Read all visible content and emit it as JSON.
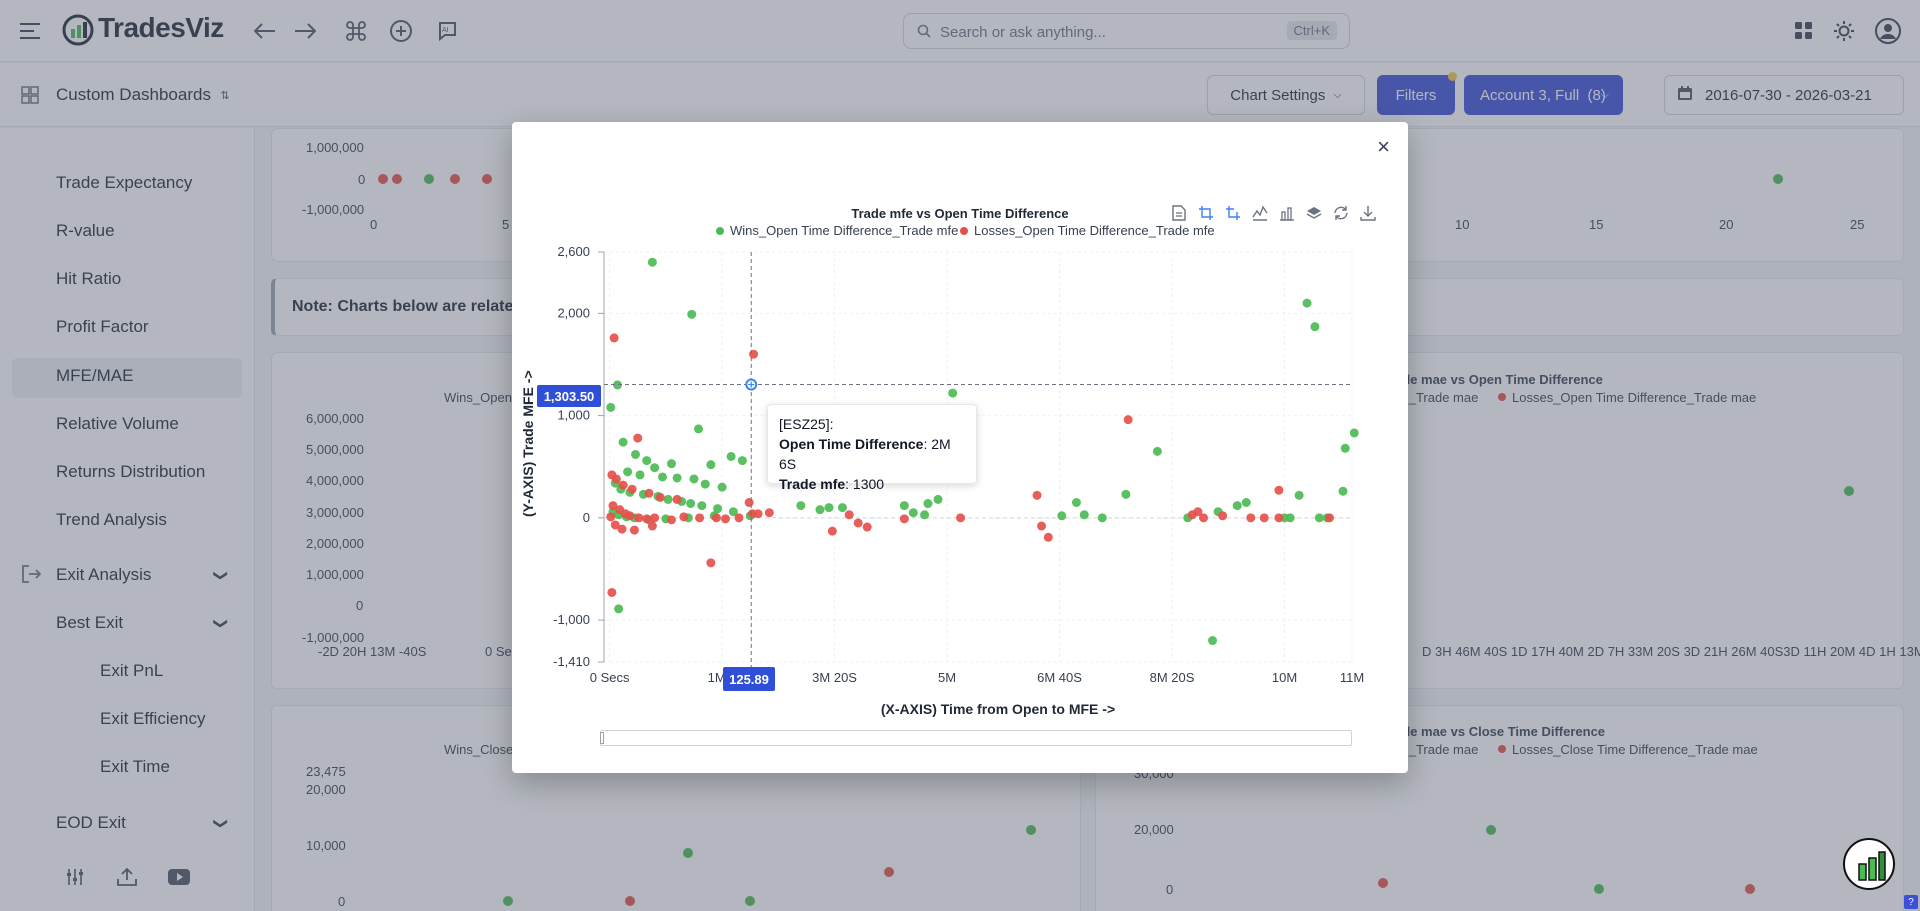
{
  "app": {
    "name": "TradesViz",
    "search_placeholder": "Search or ask anything...",
    "search_shortcut": "Ctrl+K",
    "icons": [
      "menu-icon",
      "logo-icon",
      "back-arrow-icon",
      "forward-arrow-icon",
      "command-icon",
      "add-circle-icon",
      "ai-chat-icon",
      "apps-grid-icon",
      "sun-icon",
      "user-avatar-icon"
    ]
  },
  "subbar": {
    "dashboard_label": "Custom Dashboards",
    "chart_settings": "Chart Settings",
    "filters": "Filters",
    "account": "Account 3, Full  (8)",
    "date_range": "2016-07-30 - 2026-03-21"
  },
  "sidebar": {
    "items": [
      {
        "label": "Trade Expectancy"
      },
      {
        "label": "R-value"
      },
      {
        "label": "Hit Ratio"
      },
      {
        "label": "Profit Factor"
      },
      {
        "label": "MFE/MAE"
      },
      {
        "label": "Relative Volume"
      },
      {
        "label": "Returns Distribution"
      },
      {
        "label": "Trend Analysis"
      },
      {
        "label": "Exit Analysis"
      },
      {
        "label": "Best Exit"
      },
      {
        "label": "Exit PnL"
      },
      {
        "label": "Exit Efficiency"
      },
      {
        "label": "Exit Time"
      },
      {
        "label": "EOD Exit"
      }
    ]
  },
  "background": {
    "note": "Note: Charts below are relate",
    "top_y_ticks": [
      "1,000,000",
      "0",
      "-1,000,000"
    ],
    "top_x_ticks_left": [
      "0",
      "5"
    ],
    "top_x_ticks_right": [
      "10",
      "15",
      "20",
      "25"
    ],
    "mid_left_legend": "Wins_Open",
    "mid_left_y_ticks": [
      "6,000,000",
      "5,000,000",
      "4,000,000",
      "3,000,000",
      "2,000,000",
      "1,000,000",
      "0",
      "-1,000,000"
    ],
    "mid_left_x_ticks": [
      "-2D 20H 13M -40S",
      "0 Se"
    ],
    "mid_right_title": "ade mae vs Open Time Difference",
    "mid_right_legend_a": "ce_Trade mae",
    "mid_right_legend_b": "Losses_Open Time Difference_Trade mae",
    "mid_right_x_ticks": "D 3H 46M 40S 1D 17H 40M 2D 7H 33M 20S 3D 21H 26M 40S3D 11H 20M 4D 1H 13M 2(",
    "bottom_left_legend": "Wins_Close",
    "bottom_left_y_ticks": [
      "23,475",
      "20,000",
      "10,000",
      "0"
    ],
    "bottom_right_title": "ade mae vs Close Time Difference",
    "bottom_right_legend_a": "ce_Trade mae",
    "bottom_right_legend_b": "Losses_Close Time Difference_Trade mae",
    "bottom_right_y_ticks": [
      "30,000",
      "20,000",
      "0"
    ]
  },
  "modal": {
    "close": "×",
    "toolbar_icons": [
      "data-view-icon",
      "zoom-icon",
      "zoom-reset-icon",
      "line-chart-icon",
      "bar-chart-icon",
      "stack-icon",
      "restore-icon",
      "download-icon"
    ],
    "tooltip": {
      "symbol": "[ESZ25]:",
      "open_label": "Open Time Difference",
      "open_value": ": 2M 6S",
      "mfe_label": "Trade mfe",
      "mfe_value": ": 1300"
    },
    "crosshair_y_label": "1,303.50",
    "crosshair_x_label": "125.89"
  },
  "chart_data": {
    "type": "scatter",
    "title": "Trade mfe vs Open Time Difference",
    "xlabel": "(X-AXIS) Time from Open to MFE ->",
    "ylabel": "(Y-AXIS) Trade MFE ->",
    "x_tick_labels": [
      "0 Secs",
      "1M 4",
      "3M 20S",
      "5M",
      "6M 40S",
      "8M 20S",
      "10M",
      "11M"
    ],
    "x_tick_values": [
      0,
      100,
      200,
      300,
      400,
      500,
      600,
      660
    ],
    "xlim": [
      -5,
      660
    ],
    "y_tick_labels": [
      "2,600",
      "2,000",
      "1,000",
      "0",
      "-1,000",
      "-1,410"
    ],
    "y_tick_values": [
      2600,
      2000,
      1000,
      0,
      -1000,
      -1410
    ],
    "ylim": [
      -1410,
      2600
    ],
    "legend": "top",
    "grid": true,
    "series": [
      {
        "name": "Wins_Open Time Difference_Trade mfe",
        "color": "#4cbb55",
        "points": [
          [
            38,
            2500
          ],
          [
            73,
            1990
          ],
          [
            7,
            1300
          ],
          [
            1,
            1080
          ],
          [
            79,
            870
          ],
          [
            12,
            740
          ],
          [
            23,
            620
          ],
          [
            33,
            560
          ],
          [
            55,
            530
          ],
          [
            40,
            490
          ],
          [
            90,
            520
          ],
          [
            108,
            600
          ],
          [
            118,
            560
          ],
          [
            16,
            450
          ],
          [
            27,
            420
          ],
          [
            47,
            400
          ],
          [
            60,
            390
          ],
          [
            75,
            380
          ],
          [
            85,
            330
          ],
          [
            100,
            300
          ],
          [
            5,
            340
          ],
          [
            10,
            280
          ],
          [
            18,
            250
          ],
          [
            30,
            230
          ],
          [
            43,
            210
          ],
          [
            52,
            180
          ],
          [
            64,
            160
          ],
          [
            72,
            140
          ],
          [
            82,
            120
          ],
          [
            96,
            90
          ],
          [
            110,
            60
          ],
          [
            3,
            60
          ],
          [
            8,
            30
          ],
          [
            15,
            10
          ],
          [
            22,
            0
          ],
          [
            35,
            -20
          ],
          [
            50,
            -10
          ],
          [
            70,
            0
          ],
          [
            93,
            20
          ],
          [
            125,
            20
          ],
          [
            170,
            120
          ],
          [
            187,
            80
          ],
          [
            195,
            100
          ],
          [
            207,
            100
          ],
          [
            262,
            120
          ],
          [
            270,
            50
          ],
          [
            283,
            140
          ],
          [
            292,
            180
          ],
          [
            280,
            30
          ],
          [
            305,
            1220
          ],
          [
            415,
            150
          ],
          [
            422,
            30
          ],
          [
            402,
            20
          ],
          [
            438,
            0
          ],
          [
            459,
            230
          ],
          [
            487,
            650
          ],
          [
            514,
            0
          ],
          [
            536,
            -1200
          ],
          [
            541,
            60
          ],
          [
            558,
            120
          ],
          [
            566,
            150
          ],
          [
            605,
            0
          ],
          [
            613,
            220
          ],
          [
            631,
            0
          ],
          [
            638,
            0
          ],
          [
            600,
            0
          ],
          [
            620,
            2100
          ],
          [
            627,
            1870
          ],
          [
            652,
            260
          ],
          [
            654,
            680
          ],
          [
            662,
            830
          ],
          [
            8,
            -890
          ]
        ]
      },
      {
        "name": "Losses_Open Time Difference_Trade mfe",
        "color": "#e6504b",
        "points": [
          [
            4,
            1760
          ],
          [
            128,
            1600
          ],
          [
            25,
            780
          ],
          [
            2,
            420
          ],
          [
            6,
            380
          ],
          [
            12,
            320
          ],
          [
            20,
            280
          ],
          [
            35,
            240
          ],
          [
            45,
            200
          ],
          [
            60,
            180
          ],
          [
            124,
            150
          ],
          [
            127,
            40
          ],
          [
            3,
            120
          ],
          [
            9,
            80
          ],
          [
            14,
            40
          ],
          [
            18,
            20
          ],
          [
            26,
            0
          ],
          [
            33,
            -10
          ],
          [
            40,
            0
          ],
          [
            55,
            -20
          ],
          [
            66,
            10
          ],
          [
            80,
            0
          ],
          [
            95,
            0
          ],
          [
            103,
            -10
          ],
          [
            115,
            0
          ],
          [
            132,
            40
          ],
          [
            142,
            50
          ],
          [
            213,
            30
          ],
          [
            221,
            -50
          ],
          [
            198,
            -130
          ],
          [
            229,
            -90
          ],
          [
            262,
            -10
          ],
          [
            312,
            0
          ],
          [
            380,
            220
          ],
          [
            384,
            -80
          ],
          [
            390,
            -190
          ],
          [
            461,
            960
          ],
          [
            518,
            30
          ],
          [
            523,
            60
          ],
          [
            528,
            0
          ],
          [
            545,
            20
          ],
          [
            570,
            0
          ],
          [
            582,
            0
          ],
          [
            595,
            0
          ],
          [
            595,
            270
          ],
          [
            640,
            0
          ],
          [
            1,
            10
          ],
          [
            5,
            -70
          ],
          [
            11,
            -110
          ],
          [
            22,
            -120
          ],
          [
            38,
            -80
          ],
          [
            90,
            -440
          ],
          [
            2,
            -730
          ]
        ]
      }
    ]
  }
}
